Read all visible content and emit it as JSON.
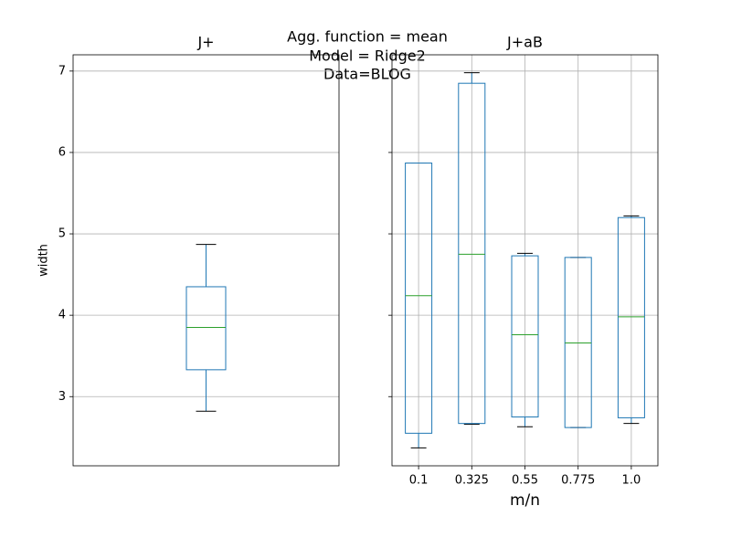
{
  "title": [
    "Agg. function = mean",
    "Model = Ridge2",
    "Data=BLOG"
  ],
  "chart_data": [
    {
      "type": "box",
      "title": "J+",
      "ylabel": "width",
      "categories": [
        null
      ],
      "low": [
        2.82
      ],
      "q1": [
        3.33
      ],
      "median": [
        3.85
      ],
      "q3": [
        4.35
      ],
      "high": [
        4.87
      ],
      "color": "#1f77b4",
      "median_color": "#2ca02c",
      "cap_color": "#000000",
      "ylim": [
        2.15,
        7.2
      ],
      "yticks": [
        3,
        4,
        5,
        6,
        7
      ],
      "ytick_labels": true,
      "grid": true
    },
    {
      "type": "box",
      "title": "J+aB",
      "xlabel": "m/n",
      "categories": [
        "0.1",
        "0.325",
        "0.55",
        "0.775",
        "1.0"
      ],
      "low": [
        2.37,
        2.66,
        2.63,
        2.62,
        2.67
      ],
      "q1": [
        2.55,
        2.67,
        2.75,
        2.62,
        2.74
      ],
      "median": [
        4.24,
        4.75,
        3.76,
        3.66,
        3.98
      ],
      "q3": [
        5.87,
        6.85,
        4.73,
        4.71,
        5.2
      ],
      "high": [
        5.87,
        6.98,
        4.76,
        4.71,
        5.22
      ],
      "color": "#1f77b4",
      "median_color": "#2ca02c",
      "cap_color": "#000000",
      "ylim": [
        2.15,
        7.2
      ],
      "yticks": [
        3,
        4,
        5,
        6,
        7
      ],
      "ytick_labels": false,
      "grid": true
    }
  ]
}
